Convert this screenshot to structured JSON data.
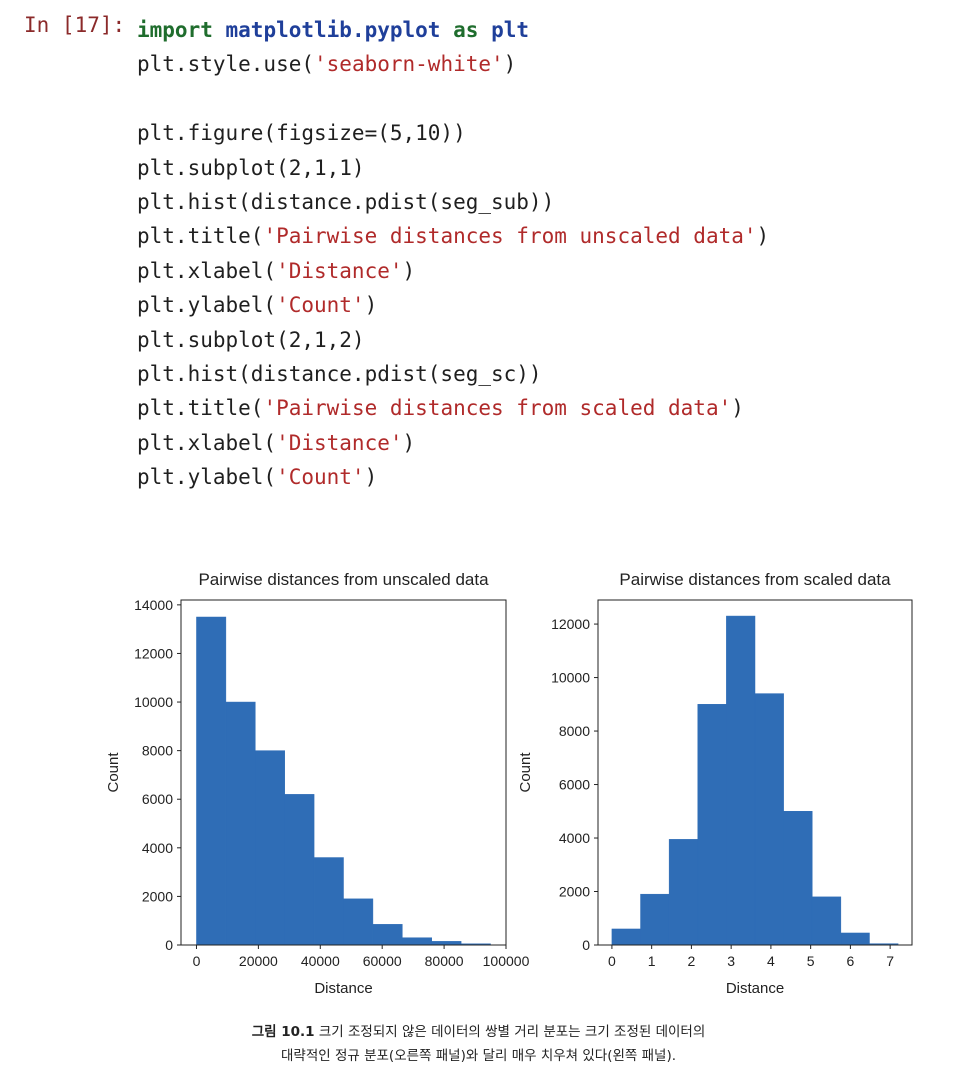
{
  "cell": {
    "prompt": "In [17]:",
    "lines": [
      [
        {
          "t": "import",
          "c": "kw"
        },
        {
          "t": " "
        },
        {
          "t": "matplotlib.pyplot",
          "c": "mod"
        },
        {
          "t": " "
        },
        {
          "t": "as",
          "c": "kw"
        },
        {
          "t": " "
        },
        {
          "t": "plt",
          "c": "mod"
        }
      ],
      [
        {
          "t": "plt.style.use("
        },
        {
          "t": "'seaborn-white'",
          "c": "str"
        },
        {
          "t": ")"
        }
      ],
      [],
      [
        {
          "t": "plt.figure(figsize=(5,10))"
        }
      ],
      [
        {
          "t": "plt.subplot(2,1,1)"
        }
      ],
      [
        {
          "t": "plt.hist(distance.pdist(seg_sub))"
        }
      ],
      [
        {
          "t": "plt.title("
        },
        {
          "t": "'Pairwise distances from unscaled data'",
          "c": "str"
        },
        {
          "t": ")"
        }
      ],
      [
        {
          "t": "plt.xlabel("
        },
        {
          "t": "'Distance'",
          "c": "str"
        },
        {
          "t": ")"
        }
      ],
      [
        {
          "t": "plt.ylabel("
        },
        {
          "t": "'Count'",
          "c": "str"
        },
        {
          "t": ")"
        }
      ],
      [
        {
          "t": "plt.subplot(2,1,2)"
        }
      ],
      [
        {
          "t": "plt.hist(distance.pdist(seg_sc))"
        }
      ],
      [
        {
          "t": "plt.title("
        },
        {
          "t": "'Pairwise distances from scaled data'",
          "c": "str"
        },
        {
          "t": ")"
        }
      ],
      [
        {
          "t": "plt.xlabel("
        },
        {
          "t": "'Distance'",
          "c": "str"
        },
        {
          "t": ")"
        }
      ],
      [
        {
          "t": "plt.ylabel("
        },
        {
          "t": "'Count'",
          "c": "str"
        },
        {
          "t": ")"
        }
      ]
    ]
  },
  "chart_data": [
    {
      "type": "bar",
      "title": "Pairwise distances from unscaled data",
      "xlabel": "Distance",
      "ylabel": "Count",
      "bar_color": "#2f6db6",
      "bin_edges": [
        0,
        9500,
        19000,
        28500,
        38000,
        47500,
        57000,
        66500,
        76000,
        85500,
        95000
      ],
      "values": [
        13500,
        10000,
        8000,
        6200,
        3600,
        1900,
        850,
        300,
        150,
        50
      ],
      "xlim": [
        -5000,
        100000
      ],
      "ylim": [
        0,
        14200
      ],
      "xticks": [
        0,
        20000,
        40000,
        60000,
        80000,
        100000
      ],
      "xtick_labels": [
        "0",
        "20000",
        "40000",
        "60000",
        "80000",
        "100000"
      ],
      "yticks": [
        0,
        2000,
        4000,
        6000,
        8000,
        10000,
        12000,
        14000
      ],
      "ytick_labels": [
        "0",
        "2000",
        "4000",
        "6000",
        "8000",
        "10000",
        "12000",
        "14000"
      ]
    },
    {
      "type": "bar",
      "title": "Pairwise distances from scaled data",
      "xlabel": "Distance",
      "ylabel": "Count",
      "bar_color": "#2f6db6",
      "bin_edges": [
        0,
        0.72,
        1.44,
        2.16,
        2.88,
        3.6,
        4.32,
        5.04,
        5.76,
        6.48,
        7.2
      ],
      "values": [
        600,
        1900,
        3950,
        9000,
        12300,
        9400,
        5000,
        1800,
        450,
        50
      ],
      "xlim": [
        -0.35,
        7.55
      ],
      "ylim": [
        0,
        12900
      ],
      "xticks": [
        0,
        1,
        2,
        3,
        4,
        5,
        6,
        7
      ],
      "xtick_labels": [
        "0",
        "1",
        "2",
        "3",
        "4",
        "5",
        "6",
        "7"
      ],
      "yticks": [
        0,
        2000,
        4000,
        6000,
        8000,
        10000,
        12000
      ],
      "ytick_labels": [
        "0",
        "2000",
        "4000",
        "6000",
        "8000",
        "10000",
        "12000"
      ]
    }
  ],
  "caption": {
    "label": "그림 10.1",
    "line1": "크기 조정되지 않은 데이터의 쌍별 거리 분포는 크기 조정된 데이터의",
    "line2": "대략적인 정규 분포(오른쪽 패널)와 달리 매우 치우쳐 있다(왼쪽 패널)."
  }
}
